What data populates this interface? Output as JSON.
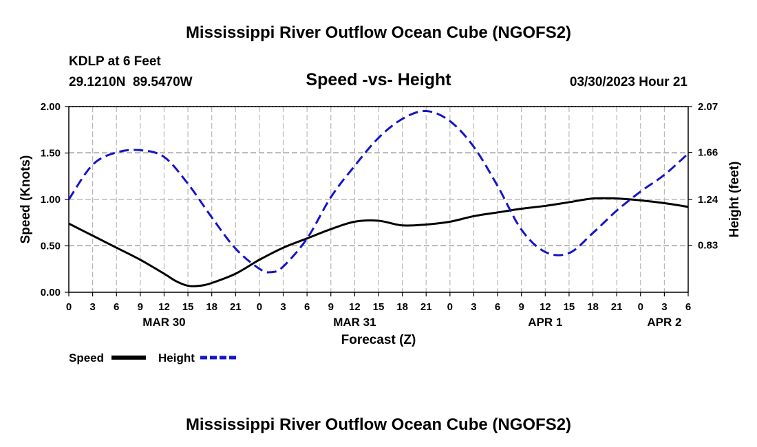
{
  "page": {
    "title_top": "Mississippi River Outflow Ocean Cube (NGOFS2)",
    "title_bottom": "Mississippi River Outflow Ocean Cube (NGOFS2)"
  },
  "header": {
    "station": "KDLP at 6 Feet",
    "coords": "29.1210N  89.5470W",
    "subtitle": "Speed -vs- Height",
    "datetime": "03/30/2023 Hour 21"
  },
  "colors": {
    "speed": "#000000",
    "height": "#1515c8",
    "grid": "#b8b8b8"
  },
  "chart_data": {
    "type": "line",
    "title": "Speed -vs- Height",
    "xlabel": "Forecast (Z)",
    "ylabel_left": "Speed (Knots)",
    "ylabel_right": "Height (feet)",
    "x_range": [
      0,
      78
    ],
    "x_unit": "hours from 03/30 00Z",
    "x_ticks": [
      0,
      3,
      6,
      9,
      12,
      15,
      18,
      21,
      24,
      27,
      30,
      33,
      36,
      39,
      42,
      45,
      48,
      51,
      54,
      57,
      60,
      63,
      66,
      69,
      72,
      75,
      78
    ],
    "x_tick_labels": [
      "0",
      "3",
      "6",
      "9",
      "12",
      "15",
      "18",
      "21",
      "0",
      "3",
      "6",
      "9",
      "12",
      "15",
      "18",
      "21",
      "0",
      "3",
      "6",
      "9",
      "12",
      "15",
      "18",
      "21",
      "0",
      "3",
      "6"
    ],
    "date_labels": [
      {
        "x": 12,
        "label": "MAR 30"
      },
      {
        "x": 36,
        "label": "MAR 31"
      },
      {
        "x": 60,
        "label": "APR 1"
      },
      {
        "x": 75,
        "label": "APR 2"
      }
    ],
    "y_left": {
      "range": [
        0,
        2.0
      ],
      "ticks": [
        0,
        0.5,
        1.0,
        1.5,
        2.0
      ],
      "tick_labels": [
        "0.00",
        "0.50",
        "1.00",
        "1.50",
        "2.00"
      ]
    },
    "y_right": {
      "range": [
        0.41,
        2.07
      ],
      "ticks": [
        0.83,
        1.24,
        1.66,
        2.07
      ],
      "tick_labels": [
        "0.83",
        "1.24",
        "1.66",
        "2.07"
      ]
    },
    "grid": true,
    "series": [
      {
        "name": "Speed",
        "axis": "left",
        "style": "solid",
        "x": [
          0,
          3,
          6,
          9,
          12,
          13.5,
          15,
          16.5,
          18,
          21,
          24,
          27,
          30,
          33,
          36,
          39,
          42,
          45,
          48,
          51,
          54,
          57,
          60,
          63,
          66,
          69,
          72,
          75,
          78
        ],
        "values": [
          0.74,
          0.61,
          0.48,
          0.35,
          0.2,
          0.12,
          0.07,
          0.07,
          0.1,
          0.2,
          0.35,
          0.48,
          0.58,
          0.68,
          0.76,
          0.77,
          0.72,
          0.73,
          0.76,
          0.82,
          0.86,
          0.9,
          0.93,
          0.97,
          1.01,
          1.01,
          0.99,
          0.96,
          0.92
        ]
      },
      {
        "name": "Height",
        "axis": "right",
        "style": "dashed",
        "x": [
          0,
          3,
          6,
          9,
          12,
          15,
          18,
          21,
          24,
          25.5,
          27,
          30,
          33,
          36,
          39,
          42,
          45,
          48,
          51,
          54,
          57,
          60,
          63,
          66,
          69,
          72,
          75,
          78
        ],
        "values": [
          1.24,
          1.55,
          1.66,
          1.68,
          1.62,
          1.38,
          1.08,
          0.8,
          0.62,
          0.59,
          0.64,
          0.89,
          1.26,
          1.54,
          1.79,
          1.96,
          2.03,
          1.94,
          1.71,
          1.36,
          0.97,
          0.77,
          0.76,
          0.94,
          1.14,
          1.31,
          1.46,
          1.65
        ]
      }
    ],
    "legend": [
      {
        "label": "Speed",
        "series": "Speed"
      },
      {
        "label": "Height",
        "series": "Height"
      }
    ],
    "legend_position": "bottom-left"
  }
}
